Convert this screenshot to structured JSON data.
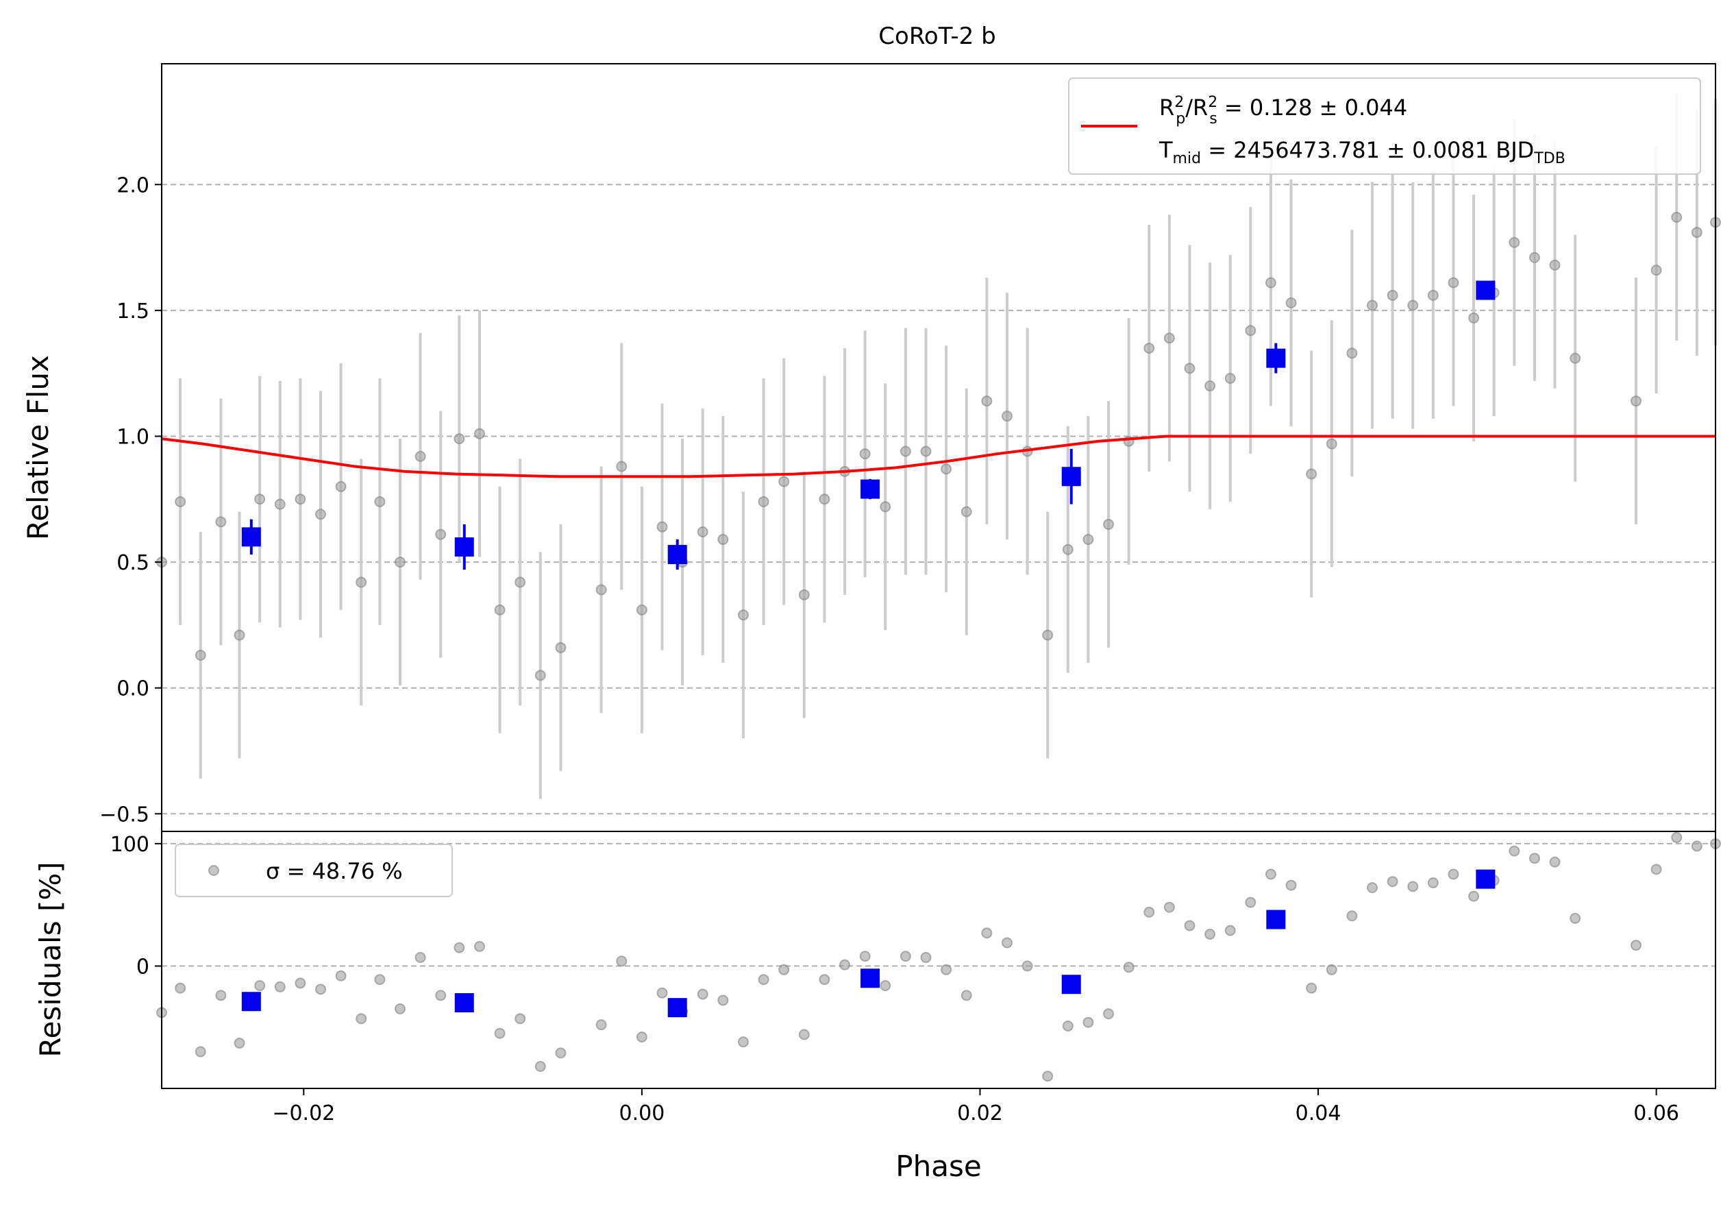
{
  "chart_data": [
    {
      "type": "scatter",
      "panel": "flux",
      "title": "CoRoT-2 b",
      "ylabel": "Relative Flux",
      "xlim": [
        -0.0284,
        0.0635
      ],
      "ylim": [
        -0.57,
        2.48
      ],
      "yticks": [
        -0.5,
        0.0,
        0.5,
        1.0,
        1.5,
        2.0
      ],
      "ytick_labels": [
        "−0.5",
        "0.0",
        "0.5",
        "1.0",
        "1.5",
        "2.0"
      ],
      "grid": "horizontal dashed",
      "legend": {
        "placement": "top-right",
        "line1": "R²p/R²s = 0.128 ± 0.044",
        "line2": "Tmid = 2456473.781 ± 0.0081 BJD",
        "line2_sub": "TDB"
      },
      "colors": {
        "data": "#a0a0a0",
        "errorbar": "#cccccc",
        "binned": "#0000ee",
        "model": "#ff0000"
      },
      "series": [
        {
          "kind": "data",
          "x": [
            -0.0284,
            -0.0273,
            -0.0261,
            -0.0249,
            -0.0238,
            -0.0226,
            -0.0214,
            -0.0202,
            -0.019,
            -0.0178,
            -0.0166,
            -0.0155,
            -0.0143,
            -0.0131,
            -0.0119,
            -0.0108,
            -0.0096,
            -0.0084,
            -0.0072,
            -0.006,
            -0.0048,
            -0.0024,
            -0.0012,
            0.0,
            0.0012,
            0.0024,
            0.0036,
            0.0048,
            0.006,
            0.0072,
            0.0084,
            0.0096,
            0.0108,
            0.012,
            0.0132,
            0.0144,
            0.0156,
            0.0168,
            0.018,
            0.0192,
            0.0204,
            0.0216,
            0.0228,
            0.024,
            0.0252,
            0.0264,
            0.0276,
            0.0288,
            0.03,
            0.0312,
            0.0324,
            0.0336,
            0.0348,
            0.036,
            0.0372,
            0.0384,
            0.0396,
            0.0408,
            0.042,
            0.0432,
            0.0444,
            0.0456,
            0.0468,
            0.048,
            0.0492,
            0.0504,
            0.0516,
            0.0528,
            0.054,
            0.0552,
            0.0588,
            0.06,
            0.0612,
            0.0624,
            0.0635
          ],
          "y": [
            0.5,
            0.74,
            0.13,
            0.66,
            0.21,
            0.75,
            0.73,
            0.75,
            0.69,
            0.8,
            0.42,
            0.74,
            0.5,
            0.92,
            0.61,
            0.99,
            1.01,
            0.31,
            0.42,
            0.05,
            0.16,
            0.39,
            0.88,
            0.31,
            0.64,
            0.5,
            0.62,
            0.59,
            0.29,
            0.74,
            0.82,
            0.37,
            0.75,
            0.86,
            0.93,
            0.72,
            0.94,
            0.94,
            0.87,
            0.7,
            1.14,
            1.08,
            0.94,
            0.21,
            0.55,
            0.59,
            0.65,
            0.98,
            1.35,
            1.39,
            1.27,
            1.2,
            1.23,
            1.42,
            1.61,
            1.53,
            0.85,
            0.97,
            1.33,
            1.52,
            1.56,
            1.52,
            1.56,
            1.61,
            1.47,
            1.57,
            1.77,
            1.71,
            1.68,
            1.31,
            1.14,
            1.66,
            1.87,
            1.81,
            1.85
          ],
          "err": [
            0.5,
            0.49,
            0.49,
            0.49,
            0.49,
            0.49,
            0.49,
            0.48,
            0.49,
            0.49,
            0.49,
            0.49,
            0.49,
            0.49,
            0.49,
            0.49,
            0.49,
            0.49,
            0.49,
            0.49,
            0.49,
            0.49,
            0.49,
            0.49,
            0.49,
            0.49,
            0.49,
            0.49,
            0.49,
            0.49,
            0.49,
            0.49,
            0.49,
            0.49,
            0.49,
            0.49,
            0.49,
            0.49,
            0.49,
            0.49,
            0.49,
            0.49,
            0.49,
            0.49,
            0.49,
            0.49,
            0.49,
            0.49,
            0.49,
            0.49,
            0.49,
            0.49,
            0.49,
            0.49,
            0.49,
            0.49,
            0.49,
            0.49,
            0.49,
            0.49,
            0.49,
            0.49,
            0.49,
            0.49,
            0.49,
            0.49,
            0.49,
            0.49,
            0.49,
            0.49,
            0.49,
            0.49,
            0.49,
            0.49,
            0.49
          ]
        },
        {
          "kind": "binned",
          "x": [
            -0.0231,
            -0.0105,
            0.0021,
            0.0135,
            0.0254,
            0.0375,
            0.0499
          ],
          "y": [
            0.6,
            0.56,
            0.53,
            0.79,
            0.84,
            1.31,
            1.58
          ],
          "err": [
            0.07,
            0.09,
            0.06,
            0.04,
            0.11,
            0.06,
            0.03
          ]
        },
        {
          "kind": "model",
          "x": [
            -0.0284,
            -0.026,
            -0.023,
            -0.02,
            -0.017,
            -0.014,
            -0.011,
            -0.008,
            -0.005,
            -0.002,
            0.0,
            0.003,
            0.006,
            0.009,
            0.012,
            0.015,
            0.018,
            0.021,
            0.024,
            0.027,
            0.029,
            0.031,
            0.033,
            0.036,
            0.0635
          ],
          "y": [
            0.99,
            0.97,
            0.94,
            0.91,
            0.88,
            0.86,
            0.85,
            0.845,
            0.84,
            0.84,
            0.84,
            0.84,
            0.845,
            0.85,
            0.86,
            0.875,
            0.9,
            0.93,
            0.955,
            0.98,
            0.99,
            1.0,
            1.0,
            1.0,
            1.0
          ]
        }
      ]
    },
    {
      "type": "scatter",
      "panel": "residuals",
      "xlabel": "Phase",
      "ylabel": "Residuals [%]",
      "xlim": [
        -0.0284,
        0.0635
      ],
      "ylim": [
        -100,
        110
      ],
      "yticks": [
        0,
        100
      ],
      "ytick_labels": [
        "0",
        "100"
      ],
      "xticks": [
        -0.02,
        0.0,
        0.02,
        0.04,
        0.06
      ],
      "xtick_labels": [
        "−0.02",
        "0.00",
        "0.02",
        "0.04",
        "0.06"
      ],
      "legend": {
        "placement": "top-left",
        "label": "σ = 48.76 %"
      },
      "series": [
        {
          "kind": "data",
          "x": [
            -0.0284,
            -0.0273,
            -0.0261,
            -0.0249,
            -0.0238,
            -0.0226,
            -0.0214,
            -0.0202,
            -0.019,
            -0.0178,
            -0.0166,
            -0.0155,
            -0.0143,
            -0.0131,
            -0.0119,
            -0.0108,
            -0.0096,
            -0.0084,
            -0.0072,
            -0.006,
            -0.0048,
            -0.0024,
            -0.0012,
            0.0,
            0.0012,
            0.0024,
            0.0036,
            0.0048,
            0.006,
            0.0072,
            0.0084,
            0.0096,
            0.0108,
            0.012,
            0.0132,
            0.0144,
            0.0156,
            0.0168,
            0.018,
            0.0192,
            0.0204,
            0.0216,
            0.0228,
            0.024,
            0.0252,
            0.0264,
            0.0276,
            0.0288,
            0.03,
            0.0312,
            0.0324,
            0.0336,
            0.0348,
            0.036,
            0.0372,
            0.0384,
            0.0396,
            0.0408,
            0.042,
            0.0432,
            0.0444,
            0.0456,
            0.0468,
            0.048,
            0.0492,
            0.0504,
            0.0516,
            0.0528,
            0.054,
            0.0552,
            0.0588,
            0.06,
            0.0612,
            0.0624,
            0.0635
          ],
          "y": [
            -38,
            -18,
            -70,
            -24,
            -63,
            -16,
            -17,
            -14,
            -19,
            -8,
            -43,
            -11,
            -35,
            7,
            -24,
            15,
            16,
            -55,
            -43,
            -82,
            -71,
            -48,
            4,
            -58,
            -22,
            -37,
            -23,
            -28,
            -62,
            -11,
            -3,
            -56,
            -11,
            1,
            8,
            -16,
            8,
            7,
            -3,
            -24,
            27,
            19,
            0,
            -90,
            -49,
            -46,
            -39,
            -1,
            44,
            48,
            33,
            26,
            29,
            52,
            75,
            66,
            -18,
            -3,
            41,
            64,
            69,
            65,
            68,
            75,
            57,
            70,
            94,
            88,
            85,
            39,
            17,
            79,
            105,
            98,
            100
          ]
        },
        {
          "kind": "binned",
          "x": [
            -0.0231,
            -0.0105,
            0.0021,
            0.0135,
            0.0254,
            0.0375,
            0.0499
          ],
          "y": [
            -29,
            -30,
            -34,
            -10,
            -15,
            38,
            71
          ]
        }
      ]
    }
  ]
}
